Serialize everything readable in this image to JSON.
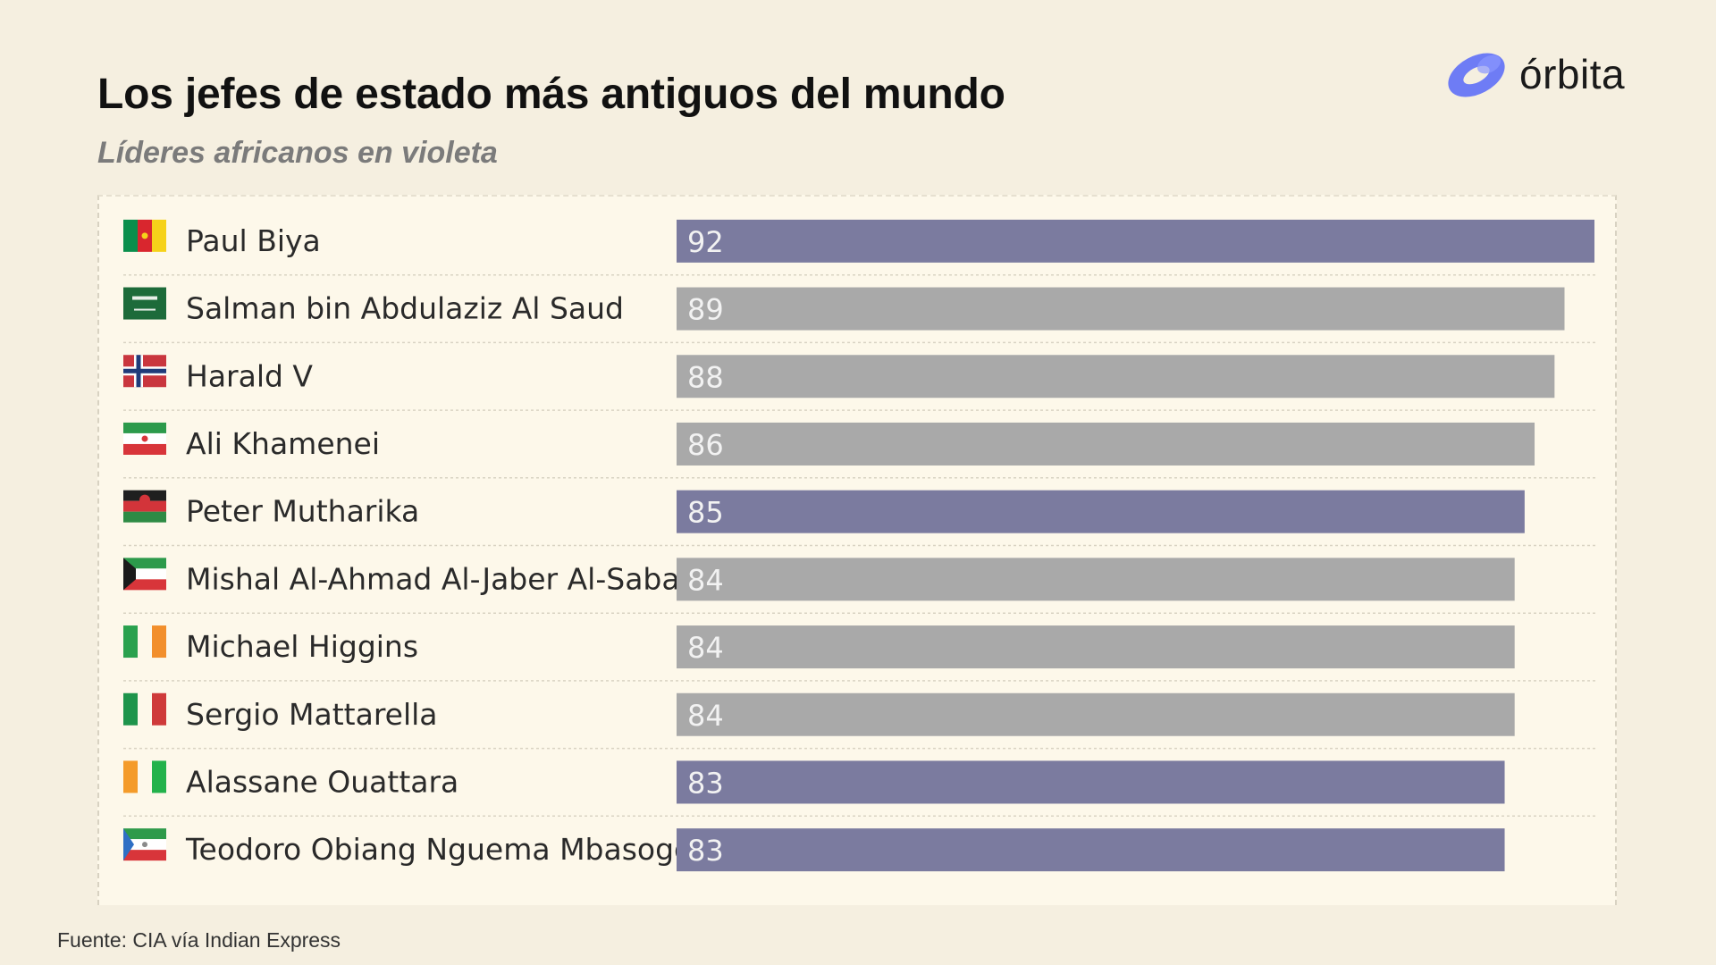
{
  "header": {
    "title": "Los jefes de estado más antiguos del mundo",
    "subtitle": "Líderes africanos en violeta"
  },
  "brand": {
    "name": "órbita",
    "icon": "orbit-logo-icon",
    "color": "#6e7cf5"
  },
  "footer": {
    "source": "Fuente: CIA vía Indian Express"
  },
  "colors": {
    "african": "#7b7b9f",
    "other": "#a9a9a9",
    "value_text": "#f2f2f2",
    "label_text": "#2a2a2a"
  },
  "chart_data": {
    "type": "bar",
    "orientation": "horizontal",
    "title": "Los jefes de estado más antiguos del mundo",
    "subtitle": "Líderes africanos en violeta",
    "xlabel": "",
    "ylabel": "",
    "xlim": [
      0,
      92
    ],
    "grid": false,
    "legend": "none",
    "categories": [
      "Paul Biya",
      "Salman bin Abdulaziz Al Saud",
      "Harald V",
      "Ali Khamenei",
      "Peter Mutharika",
      "Mishal Al-Ahmad Al-Jaber Al-Sabah",
      "Michael Higgins",
      "Sergio Mattarella",
      "Alassane Ouattara",
      "Teodoro Obiang Nguema Mbasogo"
    ],
    "values": [
      92,
      89,
      88,
      86,
      85,
      84,
      84,
      84,
      83,
      83
    ],
    "african": [
      true,
      false,
      false,
      false,
      true,
      false,
      false,
      false,
      true,
      true
    ],
    "flags": [
      "cameroon-flag-icon",
      "saudi-arabia-flag-icon",
      "norway-flag-icon",
      "iran-flag-icon",
      "malawi-flag-icon",
      "kuwait-flag-icon",
      "ireland-flag-icon",
      "italy-flag-icon",
      "ivory-coast-flag-icon",
      "equatorial-guinea-flag-icon"
    ]
  }
}
